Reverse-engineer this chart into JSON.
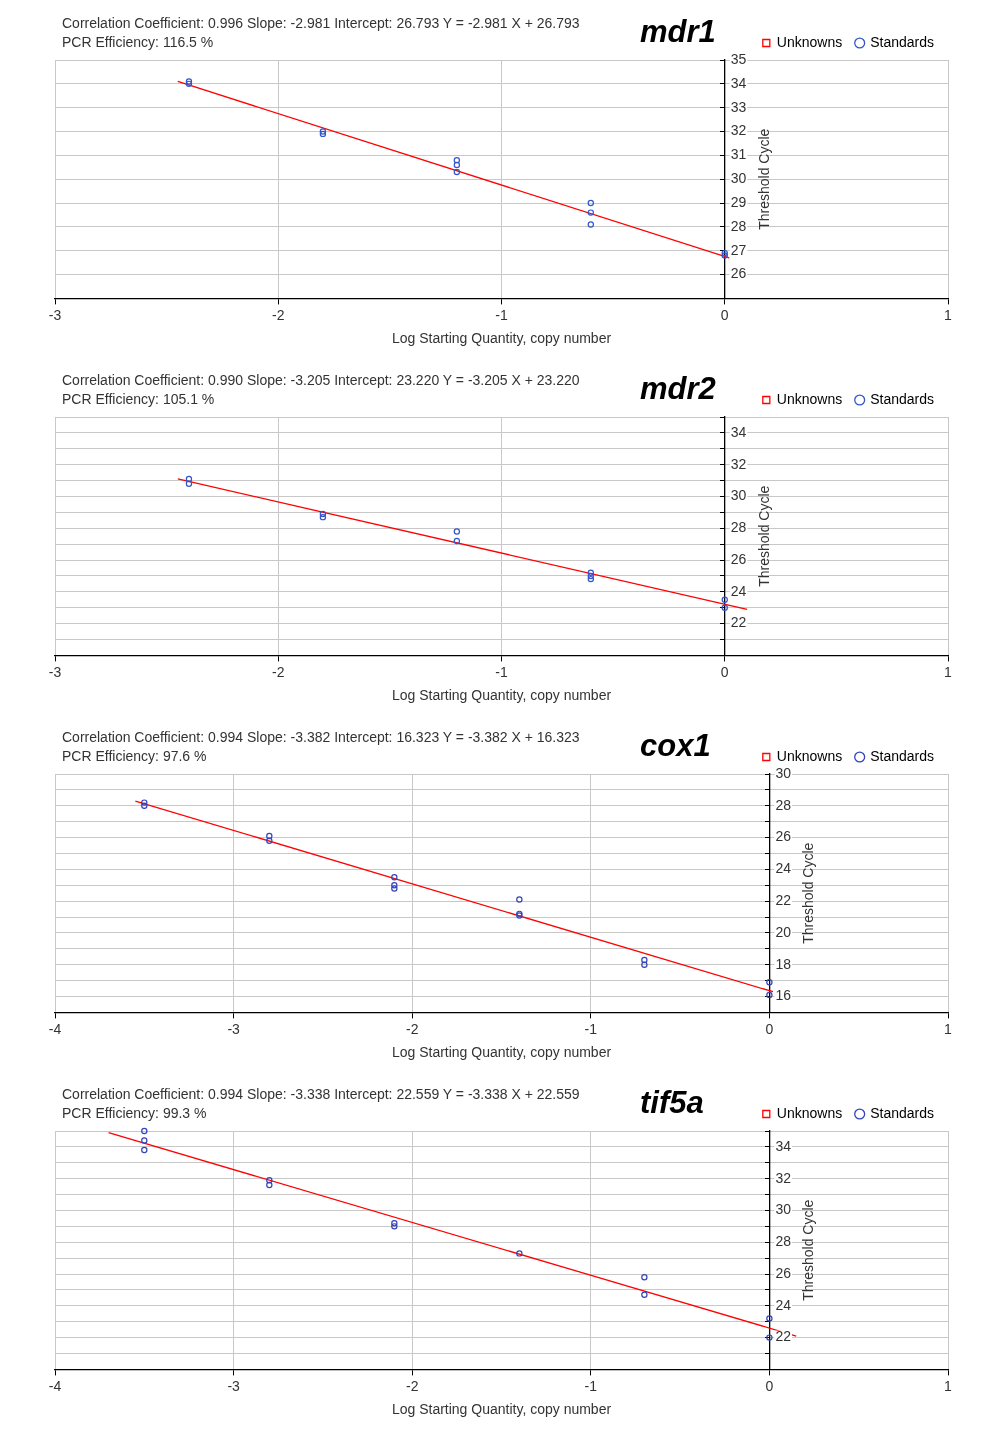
{
  "chart_data": [
    {
      "type": "scatter",
      "title": "mdr1",
      "subtitle": "Correlation Coefficient: 0.996   Slope: -2.981   Intercept: 26.793   Y = -2.981 X + 26.793",
      "annotations": [
        "PCR Efficiency: 116.5 %"
      ],
      "xlabel": "Log Starting Quantity, copy number",
      "ylabel": "Threshold Cycle",
      "xlim": [
        -3,
        1
      ],
      "xticks": [
        -3,
        -2,
        -1,
        0,
        1
      ],
      "ylim": [
        25,
        35
      ],
      "yticks": [
        {
          "value": 25,
          "label": null
        },
        26,
        27,
        28,
        29,
        30,
        31,
        32,
        33,
        34,
        35
      ],
      "grid": true,
      "legend": "top right",
      "series": [
        {
          "name": "Unknowns",
          "type": "scatter",
          "marker": "square",
          "color": "#ff0000"
        },
        {
          "name": "Standards",
          "type": "scatter",
          "marker": "circle",
          "color": "#3355cc",
          "x": [
            -2.4,
            -2.4,
            -1.8,
            -1.8,
            -1.2,
            -1.2,
            -1.2,
            -0.6,
            -0.6,
            -0.6,
            0,
            0
          ],
          "values": [
            34.1,
            34.0,
            31.9,
            32.0,
            30.8,
            30.6,
            30.3,
            29.0,
            28.6,
            28.1,
            26.9,
            26.8
          ]
        },
        {
          "type": "line",
          "marker": "none",
          "line_style": "solid",
          "color": "#ff0000",
          "x": [
            -2.45,
            0.02
          ],
          "values": [
            34.1,
            26.7
          ]
        }
      ]
    },
    {
      "type": "scatter",
      "title": "mdr2",
      "subtitle": "Correlation Coefficient: 0.990   Slope: -3.205   Intercept: 23.220   Y = -3.205 X + 23.220",
      "annotations": [
        "PCR Efficiency: 105.1 %"
      ],
      "xlabel": "Log Starting Quantity, copy number",
      "ylabel": "Threshold Cycle",
      "xlim": [
        -3,
        1
      ],
      "xticks": [
        -3,
        -2,
        -1,
        0,
        1
      ],
      "ylim": [
        20,
        35
      ],
      "yticks": [
        {
          "value": 20,
          "label": null
        },
        {
          "value": 21,
          "label": null
        },
        22,
        {
          "value": 23,
          "label": null
        },
        24,
        {
          "value": 25,
          "label": null
        },
        26,
        {
          "value": 27,
          "label": null
        },
        28,
        {
          "value": 29,
          "label": null
        },
        30,
        {
          "value": 31,
          "label": null
        },
        32,
        {
          "value": 33,
          "label": null
        },
        34,
        {
          "value": 35,
          "label": null
        }
      ],
      "grid": true,
      "legend": "top right",
      "series": [
        {
          "name": "Unknowns",
          "type": "scatter",
          "marker": "square",
          "color": "#ff0000"
        },
        {
          "name": "Standards",
          "type": "scatter",
          "marker": "circle",
          "color": "#3355cc",
          "x": [
            -2.4,
            -2.4,
            -1.8,
            -1.8,
            -1.2,
            -1.2,
            -0.6,
            -0.6,
            -0.6,
            0,
            0
          ],
          "values": [
            31.1,
            30.8,
            28.9,
            28.7,
            27.8,
            27.2,
            25.2,
            25.0,
            24.8,
            23.5,
            23.0
          ]
        },
        {
          "type": "line",
          "marker": "none",
          "line_style": "solid",
          "color": "#ff0000",
          "x": [
            -2.45,
            0.1
          ],
          "values": [
            31.1,
            22.9
          ]
        }
      ]
    },
    {
      "type": "scatter",
      "title": "cox1",
      "subtitle": "Correlation Coefficient: 0.994   Slope: -3.382   Intercept: 16.323   Y = -3.382 X + 16.323",
      "annotations": [
        "PCR Efficiency: 97.6 %"
      ],
      "xlabel": "Log Starting Quantity, copy number",
      "ylabel": "Threshold Cycle",
      "xlim": [
        -4,
        1
      ],
      "xticks": [
        -4,
        -3,
        -2,
        -1,
        0,
        1
      ],
      "ylim": [
        15,
        30
      ],
      "yticks": [
        {
          "value": 15,
          "label": null
        },
        16,
        {
          "value": 17,
          "label": null
        },
        18,
        {
          "value": 19,
          "label": null
        },
        20,
        {
          "value": 21,
          "label": null
        },
        22,
        {
          "value": 23,
          "label": null
        },
        24,
        {
          "value": 25,
          "label": null
        },
        26,
        {
          "value": 27,
          "label": null
        },
        28,
        {
          "value": 29,
          "label": null
        },
        30
      ],
      "grid": true,
      "legend": "top right",
      "series": [
        {
          "name": "Unknowns",
          "type": "scatter",
          "marker": "square",
          "color": "#ff0000"
        },
        {
          "name": "Standards",
          "type": "scatter",
          "marker": "circle",
          "color": "#3344bb",
          "x": [
            -3.5,
            -3.5,
            -2.8,
            -2.8,
            -2.1,
            -2.1,
            -2.1,
            -1.4,
            -1.4,
            -1.4,
            -0.7,
            -0.7,
            0,
            0
          ],
          "values": [
            28.2,
            28.0,
            26.1,
            25.8,
            23.5,
            23.0,
            22.8,
            22.1,
            21.2,
            21.1,
            18.3,
            18.0,
            16.9,
            16.1
          ]
        },
        {
          "type": "line",
          "marker": "none",
          "line_style": "solid",
          "color": "#ff0000",
          "x": [
            -3.55,
            0.02
          ],
          "values": [
            28.3,
            16.3
          ]
        }
      ]
    },
    {
      "type": "scatter",
      "title": "tif5a",
      "subtitle": "Correlation Coefficient: 0.994   Slope: -3.338   Intercept: 22.559   Y = -3.338 X + 22.559",
      "annotations": [
        "PCR Efficiency: 99.3 %"
      ],
      "xlabel": "Log Starting Quantity, copy number",
      "ylabel": "Threshold Cycle",
      "xlim": [
        -4,
        1
      ],
      "xticks": [
        -4,
        -3,
        -2,
        -1,
        0,
        1
      ],
      "ylim": [
        20,
        35
      ],
      "yticks": [
        {
          "value": 20,
          "label": null
        },
        {
          "value": 21,
          "label": null
        },
        22,
        {
          "value": 23,
          "label": null
        },
        24,
        {
          "value": 25,
          "label": null
        },
        26,
        {
          "value": 27,
          "label": null
        },
        28,
        {
          "value": 29,
          "label": null
        },
        30,
        {
          "value": 31,
          "label": null
        },
        32,
        {
          "value": 33,
          "label": null
        },
        34,
        {
          "value": 35,
          "label": null
        }
      ],
      "grid": true,
      "legend": "top right",
      "series": [
        {
          "name": "Unknowns",
          "type": "scatter",
          "marker": "square",
          "color": "#ff0000"
        },
        {
          "name": "Standards",
          "type": "scatter",
          "marker": "circle",
          "color": "#3344bb",
          "x": [
            -3.5,
            -3.5,
            -3.5,
            -2.8,
            -2.8,
            -2.1,
            -2.1,
            -1.4,
            -0.7,
            -0.7,
            0,
            0
          ],
          "values": [
            35.0,
            34.4,
            33.8,
            31.9,
            31.6,
            29.2,
            29.0,
            27.3,
            25.8,
            24.7,
            23.2,
            22.0
          ]
        },
        {
          "type": "line",
          "marker": "none",
          "line_style": "solid",
          "color": "#ff0000",
          "x": [
            -3.7,
            0.15
          ],
          "values": [
            34.9,
            22.1
          ]
        }
      ]
    }
  ]
}
